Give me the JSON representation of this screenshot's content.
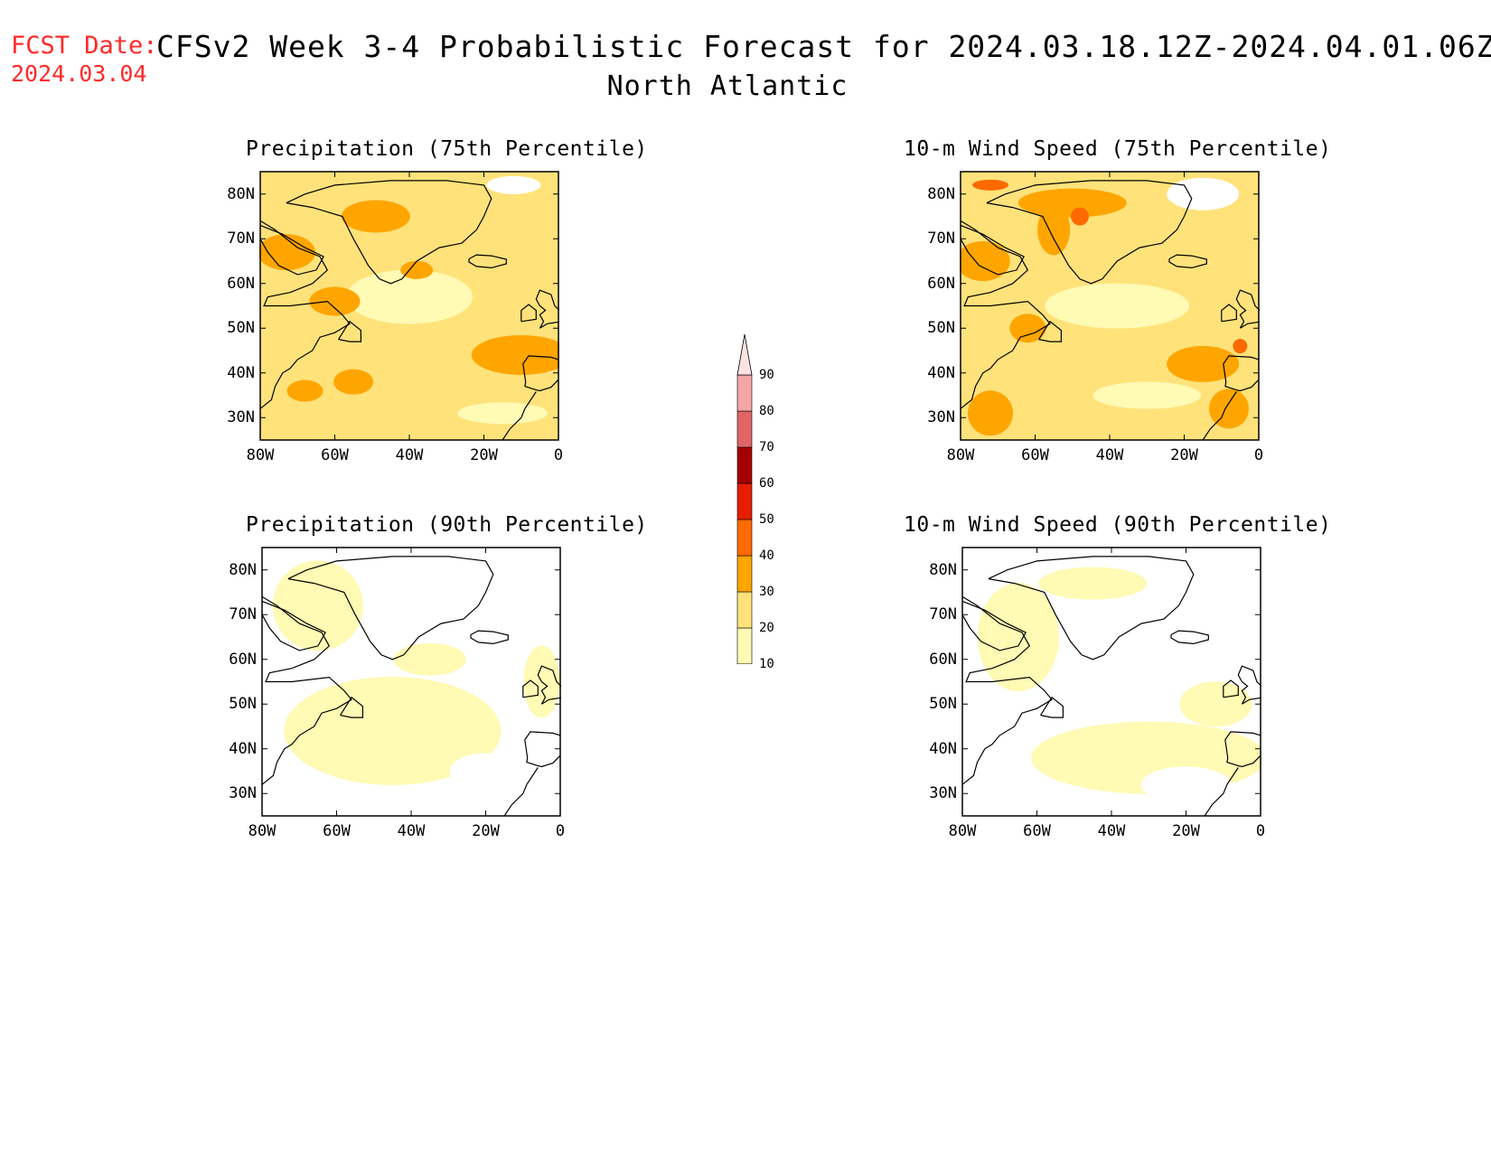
{
  "header": {
    "fcst_label": "FCST Date:",
    "fcst_date": "2024.03.04",
    "title": "CFSv2 Week 3-4 Probabilistic Forecast for 2024.03.18.12Z-2024.04.01.06Z",
    "subtitle": "North Atlantic"
  },
  "panels": [
    {
      "id": "precip75",
      "title": "Precipitation (75th Percentile)"
    },
    {
      "id": "wind75",
      "title": "10-m Wind Speed (75th Percentile)"
    },
    {
      "id": "precip90",
      "title": "Precipitation (90th Percentile)"
    },
    {
      "id": "wind90",
      "title": "10-m Wind Speed (90th Percentile)"
    }
  ],
  "axes": {
    "lat_labels": [
      "80N",
      "70N",
      "60N",
      "50N",
      "40N",
      "30N"
    ],
    "lon_labels": [
      "80W",
      "60W",
      "40W",
      "20W",
      "0"
    ]
  },
  "colorbar": {
    "levels": [
      "10",
      "20",
      "30",
      "40",
      "50",
      "60",
      "70",
      "80",
      "90"
    ],
    "colors": [
      "#fffab4",
      "#ffe27a",
      "#ffa500",
      "#ff6a00",
      "#e61e00",
      "#a50000",
      "#e06666",
      "#f4a6a6",
      "#fde2e2"
    ]
  },
  "colors": {
    "title_red": "#ff2a2a",
    "level_10": "#fffab4",
    "level_20": "#ffe27a",
    "level_30": "#ffa500",
    "level_40": "#ff6a00",
    "level_50": "#e61e00"
  }
}
